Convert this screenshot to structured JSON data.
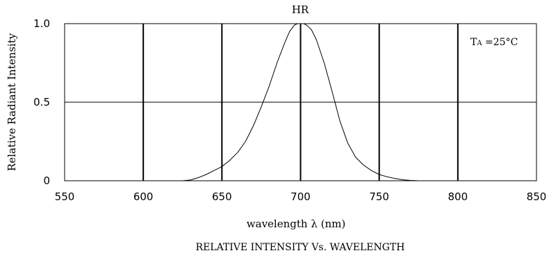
{
  "chart_data": {
    "type": "line",
    "title": "HR",
    "caption": "RELATIVE INTENSITY Vs. WAVELENGTH",
    "xlabel": "wavelength λ (nm)",
    "ylabel": "Relative Radiant Intensity",
    "xlim": [
      550,
      850
    ],
    "ylim": [
      0,
      1.0
    ],
    "x_ticks": [
      550,
      600,
      650,
      700,
      750,
      800,
      850
    ],
    "x_tick_labels": [
      "550",
      "600",
      "650",
      "700",
      "750",
      "800",
      "850"
    ],
    "y_ticks": [
      0,
      0.5,
      1.0
    ],
    "y_tick_labels": [
      "0",
      "0.5",
      "1.0"
    ],
    "grid": true,
    "annotation": {
      "main": "T",
      "subscript": "A",
      "rest": " =25°C",
      "placement": "top-right"
    },
    "series": [
      {
        "x": [
          625,
          630,
          635,
          640,
          645,
          650,
          655,
          660,
          665,
          670,
          675,
          680,
          685,
          690,
          693,
          696,
          698,
          700,
          702,
          704,
          707,
          710,
          715,
          720,
          725,
          730,
          735,
          740,
          745,
          750,
          755,
          760,
          765,
          770,
          775
        ],
        "y": [
          0.0,
          0.005,
          0.02,
          0.04,
          0.065,
          0.09,
          0.13,
          0.18,
          0.25,
          0.35,
          0.47,
          0.6,
          0.75,
          0.88,
          0.95,
          0.99,
          1.0,
          1.0,
          1.0,
          0.99,
          0.96,
          0.9,
          0.75,
          0.57,
          0.38,
          0.24,
          0.15,
          0.1,
          0.065,
          0.04,
          0.025,
          0.014,
          0.006,
          0.002,
          0.0
        ]
      }
    ]
  }
}
